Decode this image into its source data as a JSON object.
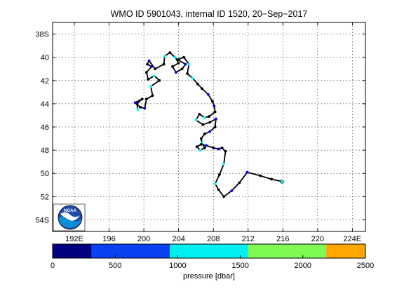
{
  "title": "WMO ID 5901043, internal ID 1520, 20−Sep−2017",
  "chart_data": {
    "type": "scatter",
    "title": "WMO ID 5901043, internal ID 1520, 20−Sep−2017",
    "x_ticks": [
      {
        "value": 192,
        "label": "192E"
      },
      {
        "value": 196,
        "label": "196"
      },
      {
        "value": 200,
        "label": "200"
      },
      {
        "value": 204,
        "label": "204"
      },
      {
        "value": 208,
        "label": "208"
      },
      {
        "value": 212,
        "label": "212"
      },
      {
        "value": 216,
        "label": "216"
      },
      {
        "value": 220,
        "label": "220"
      },
      {
        "value": 224,
        "label": "224E"
      }
    ],
    "y_ticks": [
      {
        "value": 38,
        "label": "38S"
      },
      {
        "value": 40,
        "label": "40"
      },
      {
        "value": 42,
        "label": "42"
      },
      {
        "value": 44,
        "label": "44"
      },
      {
        "value": 46,
        "label": "46"
      },
      {
        "value": 48,
        "label": "48"
      },
      {
        "value": 50,
        "label": "50"
      },
      {
        "value": 52,
        "label": "52"
      },
      {
        "value": 54,
        "label": "54S"
      }
    ],
    "xlim": [
      189.5,
      225.5
    ],
    "ylim": [
      37,
      55
    ],
    "grid": true,
    "track": [
      [
        199.3,
        44.5
      ],
      [
        199.2,
        44.0
      ],
      [
        199.8,
        43.6
      ],
      [
        199.0,
        43.9
      ],
      [
        199.6,
        44.3
      ],
      [
        200.1,
        44.4
      ],
      [
        200.3,
        43.6
      ],
      [
        201.0,
        43.3
      ],
      [
        200.8,
        42.5
      ],
      [
        201.8,
        42.0
      ],
      [
        201.2,
        41.6
      ],
      [
        200.5,
        41.9
      ],
      [
        200.3,
        41.3
      ],
      [
        200.9,
        40.8
      ],
      [
        200.4,
        40.6
      ],
      [
        200.6,
        40.3
      ],
      [
        201.3,
        41.0
      ],
      [
        202.3,
        40.6
      ],
      [
        202.4,
        39.9
      ],
      [
        203.0,
        39.6
      ],
      [
        203.6,
        40.0
      ],
      [
        204.0,
        40.5
      ],
      [
        203.3,
        40.8
      ],
      [
        203.7,
        41.3
      ],
      [
        204.4,
        41.0
      ],
      [
        204.8,
        40.6
      ],
      [
        203.9,
        40.2
      ],
      [
        204.6,
        40.0
      ],
      [
        205.2,
        40.6
      ],
      [
        205.0,
        41.4
      ],
      [
        205.6,
        41.8
      ],
      [
        206.2,
        42.3
      ],
      [
        206.7,
        42.7
      ],
      [
        207.4,
        43.2
      ],
      [
        207.9,
        43.8
      ],
      [
        208.1,
        44.2
      ],
      [
        208.2,
        44.7
      ],
      [
        207.5,
        45.1
      ],
      [
        207.0,
        45.2
      ],
      [
        206.4,
        44.9
      ],
      [
        206.0,
        45.4
      ],
      [
        206.8,
        45.8
      ],
      [
        207.6,
        45.6
      ],
      [
        208.3,
        45.3
      ],
      [
        208.2,
        46.0
      ],
      [
        207.6,
        46.4
      ],
      [
        207.0,
        46.6
      ],
      [
        206.6,
        47.0
      ],
      [
        206.7,
        47.4
      ],
      [
        207.0,
        47.8
      ],
      [
        206.5,
        48.0
      ],
      [
        206.1,
        47.7
      ],
      [
        206.6,
        47.5
      ],
      [
        207.2,
        47.6
      ],
      [
        208.0,
        47.8
      ],
      [
        208.6,
        47.9
      ],
      [
        209.0,
        47.8
      ],
      [
        209.4,
        48.1
      ],
      [
        209.2,
        49.2
      ],
      [
        208.7,
        50.1
      ],
      [
        208.2,
        50.9
      ],
      [
        208.6,
        51.4
      ],
      [
        209.2,
        52.0
      ],
      [
        210.1,
        51.5
      ],
      [
        211.0,
        50.8
      ],
      [
        211.9,
        49.9
      ],
      [
        213.4,
        50.2
      ],
      [
        214.7,
        50.5
      ],
      [
        215.9,
        50.7
      ]
    ],
    "point_colors": [
      "#00ffff",
      "#000000",
      "#000000",
      "#0000ff",
      "#000000",
      "#0000ff",
      "#000000",
      "#000000",
      "#00ffff",
      "#000000"
    ],
    "colorbar": {
      "label": "pressure [dbar]",
      "min": 0,
      "max": 2500,
      "ticks": [
        {
          "value": 0,
          "label": "0"
        },
        {
          "value": 500,
          "label": "500"
        },
        {
          "value": 1000,
          "label": "1000"
        },
        {
          "value": 1500,
          "label": "1500"
        },
        {
          "value": 2000,
          "label": "2000"
        },
        {
          "value": 2500,
          "label": "2500"
        }
      ],
      "bins": [
        {
          "from": 0,
          "to": 312.5,
          "color": "#000080"
        },
        {
          "from": 312.5,
          "to": 937.5,
          "color": "#0a41f0"
        },
        {
          "from": 937.5,
          "to": 1562.5,
          "color": "#00f0f0"
        },
        {
          "from": 1562.5,
          "to": 2187.5,
          "color": "#7ffa52"
        },
        {
          "from": 2187.5,
          "to": 2500,
          "color": "#ffa500"
        }
      ]
    }
  },
  "logo": {
    "text": "NOAA",
    "colors": [
      "#1f4aa8",
      "#0a8fd6",
      "#ffffff"
    ]
  }
}
